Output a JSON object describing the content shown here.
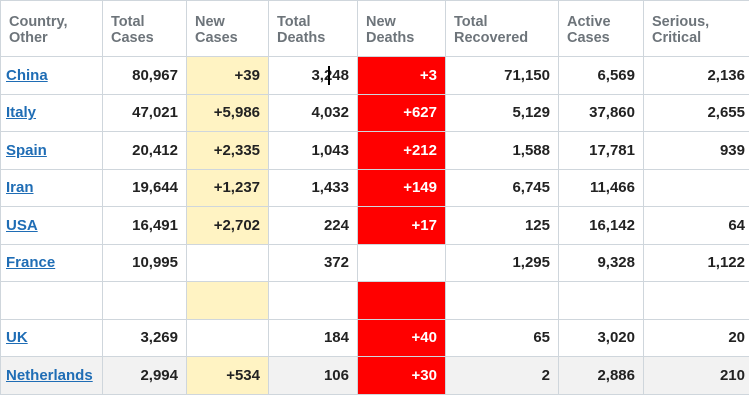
{
  "headers": [
    {
      "line1": "Country,",
      "line2": "Other"
    },
    {
      "line1": "Total",
      "line2": "Cases"
    },
    {
      "line1": "New",
      "line2": "Cases"
    },
    {
      "line1": "Total",
      "line2": "Deaths"
    },
    {
      "line1": "New",
      "line2": "Deaths"
    },
    {
      "line1": "Total",
      "line2": "Recovered"
    },
    {
      "line1": "Active",
      "line2": "Cases"
    },
    {
      "line1": "Serious,",
      "line2": "Critical"
    }
  ],
  "rows": [
    {
      "country": "China",
      "total_cases": "80,967",
      "new_cases": "+39",
      "total_deaths": "3,248",
      "new_deaths": "+3",
      "total_recovered": "71,150",
      "active_cases": "6,569",
      "serious_critical": "2,136"
    },
    {
      "country": "Italy",
      "total_cases": "47,021",
      "new_cases": "+5,986",
      "total_deaths": "4,032",
      "new_deaths": "+627",
      "total_recovered": "5,129",
      "active_cases": "37,860",
      "serious_critical": "2,655"
    },
    {
      "country": "Spain",
      "total_cases": "20,412",
      "new_cases": "+2,335",
      "total_deaths": "1,043",
      "new_deaths": "+212",
      "total_recovered": "1,588",
      "active_cases": "17,781",
      "serious_critical": "939"
    },
    {
      "country": "Iran",
      "total_cases": "19,644",
      "new_cases": "+1,237",
      "total_deaths": "1,433",
      "new_deaths": "+149",
      "total_recovered": "6,745",
      "active_cases": "11,466",
      "serious_critical": ""
    },
    {
      "country": "USA",
      "total_cases": "16,491",
      "new_cases": "+2,702",
      "total_deaths": "224",
      "new_deaths": "+17",
      "total_recovered": "125",
      "active_cases": "16,142",
      "serious_critical": "64"
    },
    {
      "country": "France",
      "total_cases": "10,995",
      "new_cases": "",
      "total_deaths": "372",
      "new_deaths": "",
      "total_recovered": "1,295",
      "active_cases": "9,328",
      "serious_critical": "1,122"
    },
    {
      "country": "",
      "total_cases": "",
      "new_cases": "",
      "total_deaths": "",
      "new_deaths": "",
      "total_recovered": "",
      "active_cases": "",
      "serious_critical": "",
      "highlight_new_cases": true,
      "highlight_new_deaths": true
    },
    {
      "country": "UK",
      "total_cases": "3,269",
      "new_cases": "",
      "total_deaths": "184",
      "new_deaths": "+40",
      "total_recovered": "65",
      "active_cases": "3,020",
      "serious_critical": "20"
    },
    {
      "country": "Netherlands",
      "total_cases": "2,994",
      "new_cases": "+534",
      "total_deaths": "106",
      "new_deaths": "+30",
      "total_recovered": "2",
      "active_cases": "2,886",
      "serious_critical": "210",
      "alt": true
    }
  ],
  "colors": {
    "new_cases_bg": "#fff3c3",
    "new_deaths_bg": "#ff0000",
    "link": "#1f6db5",
    "header_text": "#6d747a"
  }
}
